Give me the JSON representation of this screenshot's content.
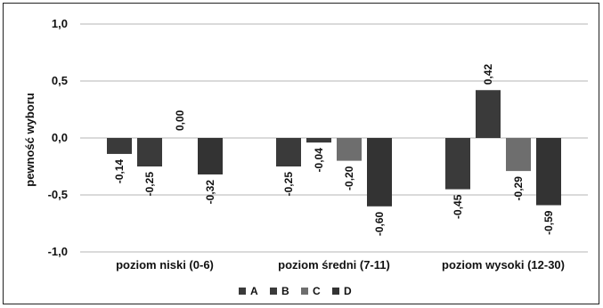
{
  "chart_data": {
    "type": "bar",
    "categories": [
      "poziom niski (0-6)",
      "poziom średni (7-11)",
      "poziom wysoki (12-30)"
    ],
    "series": [
      {
        "name": "A",
        "values": [
          -0.14,
          -0.25,
          -0.45
        ],
        "labels": [
          "-0,14",
          "-0,25",
          "-0,45"
        ]
      },
      {
        "name": "B",
        "values": [
          -0.25,
          -0.04,
          0.42
        ],
        "labels": [
          "-0,25",
          "-0,04",
          "0,42"
        ]
      },
      {
        "name": "C",
        "values": [
          0.0,
          -0.2,
          -0.29
        ],
        "labels": [
          "0,00",
          "-0,20",
          "-0,29"
        ]
      },
      {
        "name": "D",
        "values": [
          -0.32,
          -0.6,
          -0.59
        ],
        "labels": [
          "-0,32",
          "-0,60",
          "-0,59"
        ]
      }
    ],
    "ylabel": "pewność wyboru",
    "xlabel": "",
    "title": "",
    "ylim": [
      -1.0,
      1.0
    ],
    "yticks": [
      1.0,
      0.5,
      0.0,
      -0.5,
      -1.0
    ],
    "ytick_labels": [
      "1,0",
      "0,5",
      "0,0",
      "-0,5",
      "-1,0"
    ],
    "grid": true,
    "legend_position": "bottom",
    "colors": {
      "A": "#3a3a3a",
      "B": "#3a3a3a",
      "C": "#6e6e6e",
      "D": "#333333",
      "grid": "#b5b5b5"
    }
  }
}
